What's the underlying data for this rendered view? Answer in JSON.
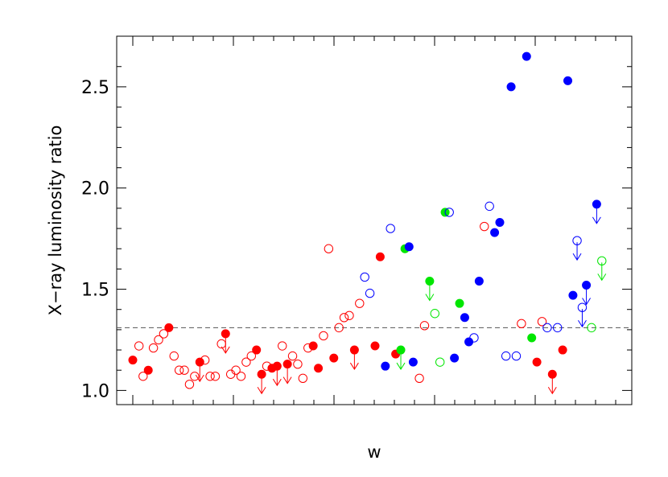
{
  "chart_data": {
    "type": "scatter",
    "xlabel": "w",
    "ylabel": "X−ray luminosity ratio",
    "xlim": [
      0,
      47
    ],
    "ylim": [
      0.93,
      2.75
    ],
    "y_ticks": [
      1.0,
      1.5,
      2.0,
      2.5
    ],
    "y_tick_labels": [
      "1.0",
      "1.5",
      "2.0",
      "2.5"
    ],
    "x_tick_labels_shown": false,
    "grid": false,
    "reference_line": {
      "y": 1.31,
      "style": "dashed",
      "color": "#555555"
    },
    "colors": {
      "red": "#ff0000",
      "green": "#00e600",
      "blue": "#0000ff"
    },
    "points": [
      {
        "x": 0.0,
        "y": 1.15,
        "color": "red",
        "filled": true,
        "upper_limit": false
      },
      {
        "x": 0.6,
        "y": 1.22,
        "color": "red",
        "filled": false,
        "upper_limit": false
      },
      {
        "x": 1.0,
        "y": 1.07,
        "color": "red",
        "filled": false,
        "upper_limit": false
      },
      {
        "x": 1.5,
        "y": 1.1,
        "color": "red",
        "filled": true,
        "upper_limit": false
      },
      {
        "x": 2.0,
        "y": 1.21,
        "color": "red",
        "filled": false,
        "upper_limit": false
      },
      {
        "x": 2.5,
        "y": 1.25,
        "color": "red",
        "filled": false,
        "upper_limit": false
      },
      {
        "x": 3.0,
        "y": 1.28,
        "color": "red",
        "filled": false,
        "upper_limit": false
      },
      {
        "x": 3.5,
        "y": 1.31,
        "color": "red",
        "filled": true,
        "upper_limit": false
      },
      {
        "x": 4.0,
        "y": 1.17,
        "color": "red",
        "filled": false,
        "upper_limit": false
      },
      {
        "x": 4.5,
        "y": 1.1,
        "color": "red",
        "filled": false,
        "upper_limit": false
      },
      {
        "x": 5.0,
        "y": 1.1,
        "color": "red",
        "filled": false,
        "upper_limit": false
      },
      {
        "x": 5.5,
        "y": 1.03,
        "color": "red",
        "filled": false,
        "upper_limit": false
      },
      {
        "x": 6.0,
        "y": 1.07,
        "color": "red",
        "filled": false,
        "upper_limit": false
      },
      {
        "x": 6.5,
        "y": 1.14,
        "color": "red",
        "filled": true,
        "upper_limit": true
      },
      {
        "x": 7.0,
        "y": 1.15,
        "color": "red",
        "filled": false,
        "upper_limit": false
      },
      {
        "x": 7.5,
        "y": 1.07,
        "color": "red",
        "filled": false,
        "upper_limit": false
      },
      {
        "x": 8.0,
        "y": 1.07,
        "color": "red",
        "filled": false,
        "upper_limit": false
      },
      {
        "x": 8.6,
        "y": 1.23,
        "color": "red",
        "filled": false,
        "upper_limit": false
      },
      {
        "x": 9.0,
        "y": 1.28,
        "color": "red",
        "filled": true,
        "upper_limit": true
      },
      {
        "x": 9.5,
        "y": 1.08,
        "color": "red",
        "filled": false,
        "upper_limit": false
      },
      {
        "x": 10.0,
        "y": 1.1,
        "color": "red",
        "filled": false,
        "upper_limit": false
      },
      {
        "x": 10.5,
        "y": 1.07,
        "color": "red",
        "filled": false,
        "upper_limit": false
      },
      {
        "x": 11.0,
        "y": 1.14,
        "color": "red",
        "filled": false,
        "upper_limit": false
      },
      {
        "x": 11.5,
        "y": 1.17,
        "color": "red",
        "filled": false,
        "upper_limit": false
      },
      {
        "x": 12.0,
        "y": 1.2,
        "color": "red",
        "filled": true,
        "upper_limit": false
      },
      {
        "x": 12.5,
        "y": 1.08,
        "color": "red",
        "filled": true,
        "upper_limit": true
      },
      {
        "x": 13.0,
        "y": 1.12,
        "color": "red",
        "filled": false,
        "upper_limit": false
      },
      {
        "x": 13.5,
        "y": 1.11,
        "color": "red",
        "filled": true,
        "upper_limit": false
      },
      {
        "x": 14.0,
        "y": 1.12,
        "color": "red",
        "filled": true,
        "upper_limit": true
      },
      {
        "x": 14.5,
        "y": 1.22,
        "color": "red",
        "filled": false,
        "upper_limit": false
      },
      {
        "x": 15.0,
        "y": 1.13,
        "color": "red",
        "filled": true,
        "upper_limit": true
      },
      {
        "x": 15.5,
        "y": 1.17,
        "color": "red",
        "filled": false,
        "upper_limit": false
      },
      {
        "x": 16.0,
        "y": 1.13,
        "color": "red",
        "filled": false,
        "upper_limit": false
      },
      {
        "x": 16.5,
        "y": 1.06,
        "color": "red",
        "filled": false,
        "upper_limit": false
      },
      {
        "x": 17.0,
        "y": 1.21,
        "color": "red",
        "filled": false,
        "upper_limit": false
      },
      {
        "x": 17.5,
        "y": 1.22,
        "color": "red",
        "filled": true,
        "upper_limit": false
      },
      {
        "x": 18.0,
        "y": 1.11,
        "color": "red",
        "filled": true,
        "upper_limit": false
      },
      {
        "x": 18.5,
        "y": 1.27,
        "color": "red",
        "filled": false,
        "upper_limit": false
      },
      {
        "x": 19.0,
        "y": 1.7,
        "color": "red",
        "filled": false,
        "upper_limit": false
      },
      {
        "x": 19.5,
        "y": 1.16,
        "color": "red",
        "filled": true,
        "upper_limit": false
      },
      {
        "x": 20.0,
        "y": 1.31,
        "color": "red",
        "filled": false,
        "upper_limit": false
      },
      {
        "x": 20.5,
        "y": 1.36,
        "color": "red",
        "filled": false,
        "upper_limit": false
      },
      {
        "x": 21.0,
        "y": 1.37,
        "color": "red",
        "filled": false,
        "upper_limit": false
      },
      {
        "x": 21.5,
        "y": 1.2,
        "color": "red",
        "filled": true,
        "upper_limit": true
      },
      {
        "x": 22.0,
        "y": 1.43,
        "color": "red",
        "filled": false,
        "upper_limit": false
      },
      {
        "x": 22.5,
        "y": 1.56,
        "color": "blue",
        "filled": false,
        "upper_limit": false
      },
      {
        "x": 23.0,
        "y": 1.48,
        "color": "blue",
        "filled": false,
        "upper_limit": false
      },
      {
        "x": 23.5,
        "y": 1.22,
        "color": "red",
        "filled": true,
        "upper_limit": false
      },
      {
        "x": 24.0,
        "y": 1.66,
        "color": "red",
        "filled": true,
        "upper_limit": false
      },
      {
        "x": 24.5,
        "y": 1.12,
        "color": "blue",
        "filled": true,
        "upper_limit": false
      },
      {
        "x": 25.0,
        "y": 1.8,
        "color": "blue",
        "filled": false,
        "upper_limit": false
      },
      {
        "x": 25.5,
        "y": 1.18,
        "color": "red",
        "filled": true,
        "upper_limit": false
      },
      {
        "x": 26.0,
        "y": 1.2,
        "color": "green",
        "filled": true,
        "upper_limit": true
      },
      {
        "x": 26.4,
        "y": 1.7,
        "color": "green",
        "filled": true,
        "upper_limit": false
      },
      {
        "x": 26.8,
        "y": 1.71,
        "color": "blue",
        "filled": true,
        "upper_limit": false
      },
      {
        "x": 27.2,
        "y": 1.14,
        "color": "blue",
        "filled": true,
        "upper_limit": false
      },
      {
        "x": 27.8,
        "y": 1.06,
        "color": "red",
        "filled": false,
        "upper_limit": false
      },
      {
        "x": 28.3,
        "y": 1.32,
        "color": "red",
        "filled": false,
        "upper_limit": false
      },
      {
        "x": 28.8,
        "y": 1.54,
        "color": "green",
        "filled": true,
        "upper_limit": true
      },
      {
        "x": 29.3,
        "y": 1.38,
        "color": "green",
        "filled": false,
        "upper_limit": false
      },
      {
        "x": 29.8,
        "y": 1.14,
        "color": "green",
        "filled": false,
        "upper_limit": false
      },
      {
        "x": 30.3,
        "y": 1.88,
        "color": "green",
        "filled": true,
        "upper_limit": false
      },
      {
        "x": 30.7,
        "y": 1.88,
        "color": "blue",
        "filled": false,
        "upper_limit": false
      },
      {
        "x": 31.2,
        "y": 1.16,
        "color": "blue",
        "filled": true,
        "upper_limit": false
      },
      {
        "x": 31.7,
        "y": 1.43,
        "color": "green",
        "filled": true,
        "upper_limit": false
      },
      {
        "x": 32.2,
        "y": 1.36,
        "color": "blue",
        "filled": true,
        "upper_limit": false
      },
      {
        "x": 32.6,
        "y": 1.24,
        "color": "blue",
        "filled": true,
        "upper_limit": false
      },
      {
        "x": 33.1,
        "y": 1.26,
        "color": "blue",
        "filled": false,
        "upper_limit": false
      },
      {
        "x": 33.6,
        "y": 1.54,
        "color": "blue",
        "filled": true,
        "upper_limit": false
      },
      {
        "x": 34.1,
        "y": 1.81,
        "color": "red",
        "filled": false,
        "upper_limit": false
      },
      {
        "x": 34.6,
        "y": 1.91,
        "color": "blue",
        "filled": false,
        "upper_limit": false
      },
      {
        "x": 35.1,
        "y": 1.78,
        "color": "blue",
        "filled": true,
        "upper_limit": false
      },
      {
        "x": 35.6,
        "y": 1.83,
        "color": "blue",
        "filled": true,
        "upper_limit": false
      },
      {
        "x": 36.2,
        "y": 1.17,
        "color": "blue",
        "filled": false,
        "upper_limit": false
      },
      {
        "x": 36.7,
        "y": 2.5,
        "color": "blue",
        "filled": true,
        "upper_limit": false
      },
      {
        "x": 37.2,
        "y": 1.17,
        "color": "blue",
        "filled": false,
        "upper_limit": false
      },
      {
        "x": 37.7,
        "y": 1.33,
        "color": "red",
        "filled": false,
        "upper_limit": false
      },
      {
        "x": 38.2,
        "y": 2.65,
        "color": "blue",
        "filled": true,
        "upper_limit": false
      },
      {
        "x": 38.7,
        "y": 1.26,
        "color": "green",
        "filled": true,
        "upper_limit": false
      },
      {
        "x": 39.2,
        "y": 1.14,
        "color": "red",
        "filled": true,
        "upper_limit": false
      },
      {
        "x": 39.7,
        "y": 1.34,
        "color": "red",
        "filled": false,
        "upper_limit": false
      },
      {
        "x": 40.2,
        "y": 1.31,
        "color": "blue",
        "filled": false,
        "upper_limit": false
      },
      {
        "x": 40.7,
        "y": 1.08,
        "color": "red",
        "filled": true,
        "upper_limit": true
      },
      {
        "x": 41.2,
        "y": 1.31,
        "color": "blue",
        "filled": false,
        "upper_limit": false
      },
      {
        "x": 41.7,
        "y": 1.2,
        "color": "red",
        "filled": true,
        "upper_limit": false
      },
      {
        "x": 42.2,
        "y": 2.53,
        "color": "blue",
        "filled": true,
        "upper_limit": false
      },
      {
        "x": 42.7,
        "y": 1.47,
        "color": "blue",
        "filled": true,
        "upper_limit": false
      },
      {
        "x": 43.1,
        "y": 1.74,
        "color": "blue",
        "filled": false,
        "upper_limit": true
      },
      {
        "x": 43.6,
        "y": 1.41,
        "color": "blue",
        "filled": false,
        "upper_limit": true
      },
      {
        "x": 44.0,
        "y": 1.52,
        "color": "blue",
        "filled": true,
        "upper_limit": true
      },
      {
        "x": 44.5,
        "y": 1.31,
        "color": "green",
        "filled": false,
        "upper_limit": false
      },
      {
        "x": 45.0,
        "y": 1.92,
        "color": "blue",
        "filled": true,
        "upper_limit": true
      },
      {
        "x": 45.5,
        "y": 1.64,
        "color": "green",
        "filled": false,
        "upper_limit": true
      }
    ]
  }
}
